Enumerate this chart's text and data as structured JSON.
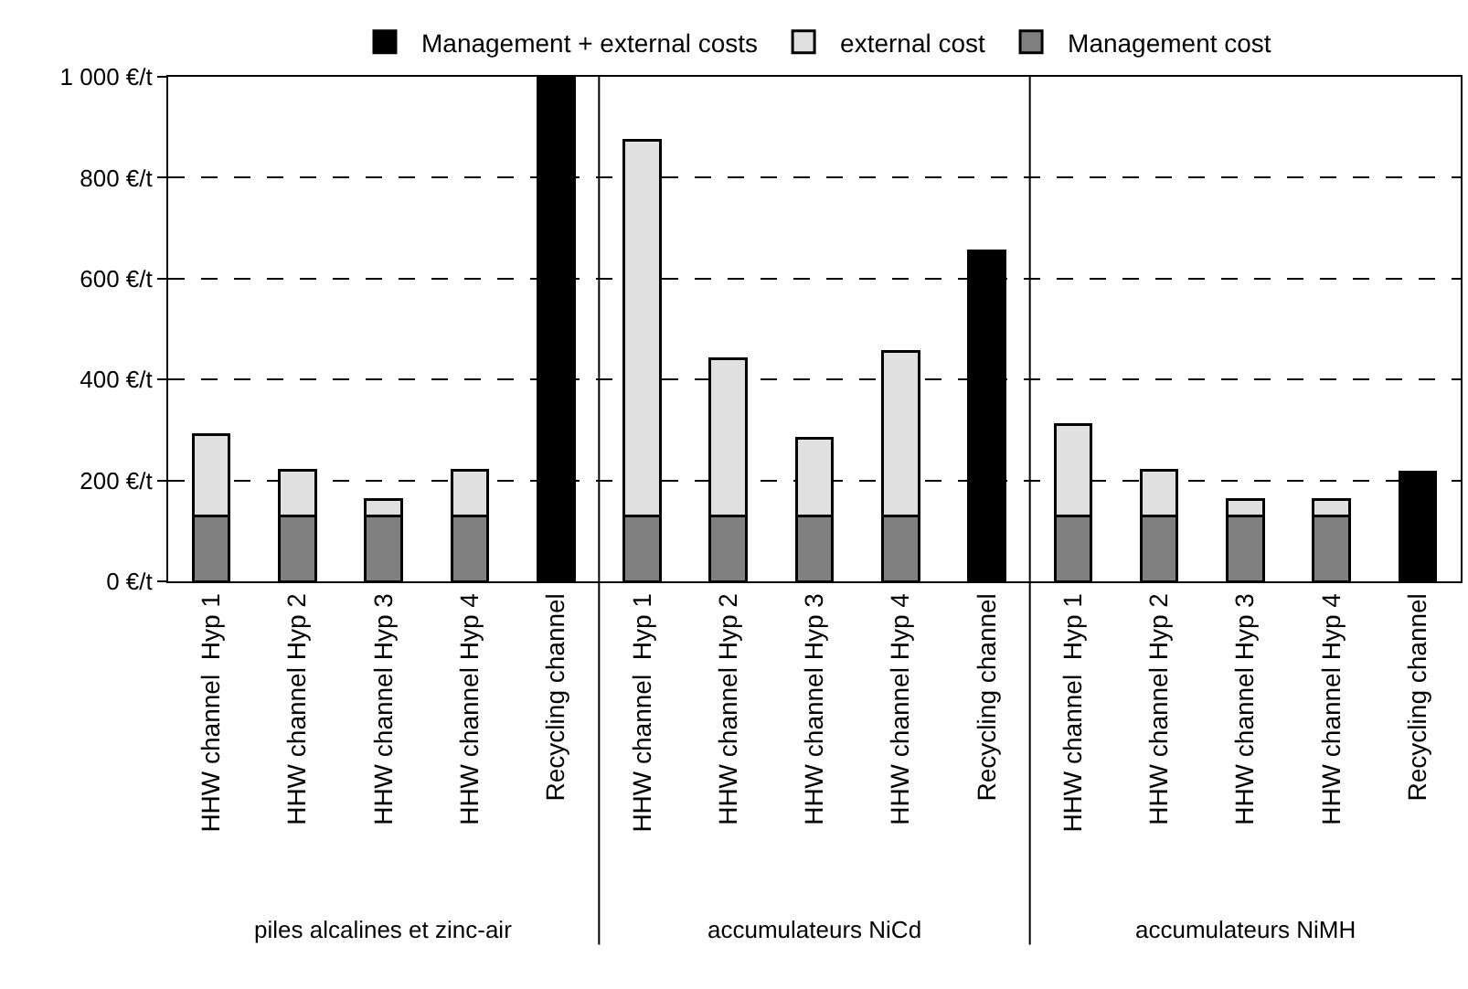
{
  "chart_data": {
    "type": "bar",
    "stacked": true,
    "categories": [
      "HHW channel  Hyp 1",
      "HHW channel Hyp 2",
      "HHW channel Hyp 3",
      "HHW channel Hyp 4",
      "Recycling channel",
      "HHW channel  Hyp 1",
      "HHW channel Hyp 2",
      "HHW channel Hyp 3",
      "HHW channel Hyp 4",
      "Recycling channel",
      "HHW channel  Hyp 1",
      "HHW channel Hyp 2",
      "HHW channel Hyp 3",
      "HHW channel Hyp 4",
      "Recycling channel"
    ],
    "series": [
      {
        "name": "Management cost",
        "color": "#808080",
        "values": [
          130,
          130,
          130,
          130,
          null,
          130,
          130,
          130,
          130,
          null,
          130,
          130,
          130,
          130,
          null
        ]
      },
      {
        "name": "external cost",
        "color": "#e0e0e0",
        "values": [
          160,
          90,
          32,
          90,
          null,
          745,
          312,
          154,
          325,
          null,
          181,
          90,
          32,
          32,
          null
        ]
      },
      {
        "name": "Management + external costs",
        "color": "#000000",
        "values": [
          null,
          null,
          null,
          null,
          1000,
          null,
          null,
          null,
          null,
          655,
          null,
          null,
          null,
          null,
          216
        ]
      }
    ],
    "annotations": [
      "piles alcalines et zinc-air",
      "accumulateurs NiCd",
      "accumulateurs NiMH"
    ],
    "ylim": [
      0,
      1000
    ],
    "yticks": [
      {
        "value": 0,
        "label": "0 €/t"
      },
      {
        "value": 200,
        "label": "200 €/t"
      },
      {
        "value": 400,
        "label": "400 €/t"
      },
      {
        "value": 600,
        "label": "600 €/t"
      },
      {
        "value": 800,
        "label": "800 €/t"
      },
      {
        "value": 1000,
        "label": "1 000 €/t"
      }
    ],
    "grid": "y",
    "legend": "top"
  }
}
